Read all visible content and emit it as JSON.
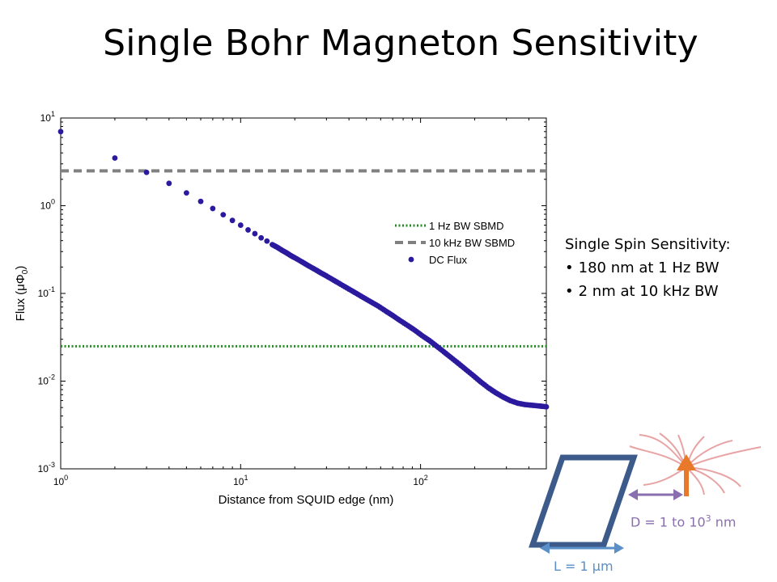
{
  "slide": {
    "title": "Single Bohr Magneton Sensitivity"
  },
  "sensitivity": {
    "heading": "Single Spin Sensitivity:",
    "items": [
      "180 nm at 1 Hz BW",
      "2 nm at 10 kHz BW"
    ]
  },
  "diagram": {
    "d_label_prefix": "D = 1 to 10",
    "d_label_exp": "3",
    "d_label_unit": " nm",
    "l_label": "L = 1 μm",
    "colors": {
      "loop": "#3c5a8a",
      "arrow": "#e8782a",
      "field_lines": "#e8a4a4",
      "d_arrow": "#8a6fb0",
      "l_arrow": "#5a8fc8"
    }
  },
  "chart_data": {
    "type": "scatter",
    "title": "",
    "xlabel": "Distance from SQUID edge (nm)",
    "ylabel": "Flux (μΦ0)",
    "xscale": "log",
    "yscale": "log",
    "xlim": [
      1,
      500
    ],
    "ylim": [
      0.001,
      10
    ],
    "x_ticks": [
      "10^0",
      "10^1",
      "10^2"
    ],
    "y_ticks": [
      "10^-3",
      "10^-2",
      "10^-1",
      "10^0",
      "10^1"
    ],
    "legend_position": "right",
    "reference_lines": [
      {
        "name": "1 Hz BW SBMD",
        "value": 0.025,
        "style": "dotted",
        "color": "#228b22"
      },
      {
        "name": "10 kHz BW SBMD",
        "value": 2.5,
        "style": "dashed",
        "color": "#808080"
      }
    ],
    "series": [
      {
        "name": "DC Flux",
        "color": "#2b1a9e",
        "points_x": [
          1,
          2,
          3,
          4,
          5,
          6,
          7,
          8,
          9,
          10,
          11,
          12,
          13,
          14,
          15,
          16,
          17,
          18,
          19,
          20,
          22,
          24,
          26,
          28,
          30,
          33,
          36,
          40,
          44,
          48,
          53,
          58,
          64,
          70,
          77,
          85,
          93,
          102,
          112,
          123,
          135,
          148,
          163,
          179,
          197,
          216,
          238,
          261,
          287,
          315,
          347,
          381,
          419,
          460,
          500
        ],
        "points_y": [
          7,
          3.5,
          2.4,
          1.8,
          1.4,
          1.12,
          0.93,
          0.79,
          0.68,
          0.6,
          0.53,
          0.48,
          0.43,
          0.395,
          0.36,
          0.335,
          0.31,
          0.29,
          0.27,
          0.255,
          0.228,
          0.205,
          0.187,
          0.171,
          0.158,
          0.141,
          0.127,
          0.112,
          0.1,
          0.09,
          0.08,
          0.072,
          0.063,
          0.056,
          0.049,
          0.043,
          0.038,
          0.033,
          0.029,
          0.025,
          0.0215,
          0.0185,
          0.0158,
          0.0135,
          0.0115,
          0.0098,
          0.0084,
          0.0074,
          0.0066,
          0.006,
          0.0056,
          0.0054,
          0.0053,
          0.0052,
          0.0051
        ]
      }
    ]
  }
}
